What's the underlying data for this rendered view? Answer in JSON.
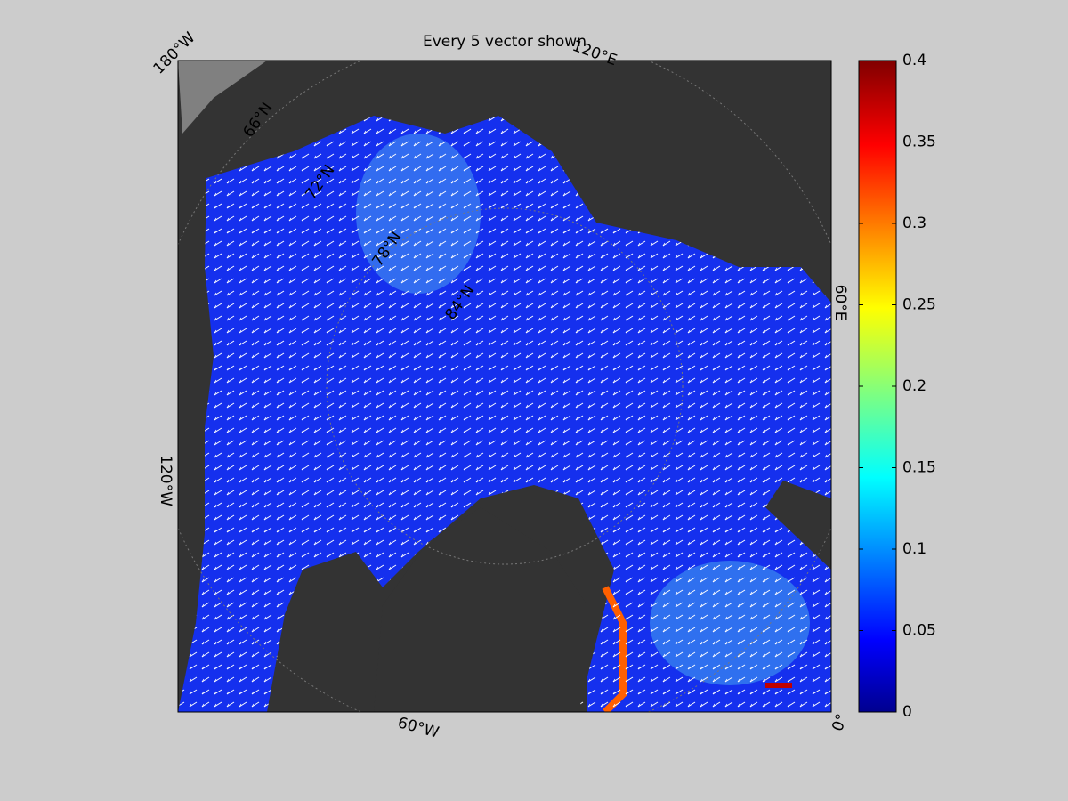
{
  "title": "Every 5 vector shown",
  "map": {
    "labels": [
      "180°W",
      "120°E",
      "60°E",
      "0°",
      "60°W",
      "120°W",
      "66°N",
      "72°N",
      "78°N",
      "84°N"
    ]
  },
  "colorbar": {
    "lim": [
      0,
      0.4
    ],
    "ticks": [
      0,
      0.05,
      0.1,
      0.15,
      0.2,
      0.25,
      0.3,
      0.35,
      0.4
    ]
  }
}
